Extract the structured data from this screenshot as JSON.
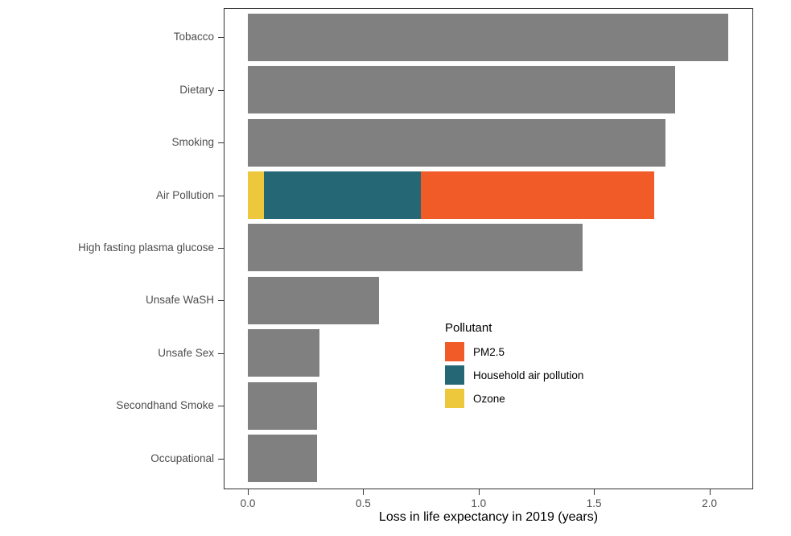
{
  "figure": {
    "background": "#ffffff",
    "panel_border_color": "#333333",
    "axis_text_color": "#4d4d4d",
    "default_bar_color": "#808080"
  },
  "chart_data": {
    "type": "bar",
    "orientation": "horizontal",
    "title": "",
    "xlabel": "Loss in life expectancy in 2019 (years)",
    "ylabel": "",
    "xlim": [
      0,
      2.19
    ],
    "grid": false,
    "x_ticks": [
      {
        "value": 0.0,
        "label": "0.0"
      },
      {
        "value": 0.5,
        "label": "0.5"
      },
      {
        "value": 1.0,
        "label": "1.0"
      },
      {
        "value": 1.5,
        "label": "1.5"
      },
      {
        "value": 2.0,
        "label": "2.0"
      }
    ],
    "categories": [
      "Tobacco",
      "Dietary",
      "Smoking",
      "Air Pollution",
      "High fasting plasma glucose",
      "Unsafe WaSH",
      "Unsafe Sex",
      "Secondhand Smoke",
      "Occupational"
    ],
    "bars": [
      {
        "category": "Tobacco",
        "total": 2.08,
        "segments": [
          {
            "pollutant": "",
            "value": 2.08,
            "color": "#808080"
          }
        ]
      },
      {
        "category": "Dietary",
        "total": 1.85,
        "segments": [
          {
            "pollutant": "",
            "value": 1.85,
            "color": "#808080"
          }
        ]
      },
      {
        "category": "Smoking",
        "total": 1.81,
        "segments": [
          {
            "pollutant": "",
            "value": 1.81,
            "color": "#808080"
          }
        ]
      },
      {
        "category": "Air Pollution",
        "total": 1.76,
        "segments": [
          {
            "pollutant": "Ozone",
            "value": 0.07,
            "color": "#EEC83C"
          },
          {
            "pollutant": "Household air pollution",
            "value": 0.68,
            "color": "#266776"
          },
          {
            "pollutant": "PM2.5",
            "value": 1.01,
            "color": "#F15B28"
          }
        ]
      },
      {
        "category": "High fasting plasma glucose",
        "total": 1.45,
        "segments": [
          {
            "pollutant": "",
            "value": 1.45,
            "color": "#808080"
          }
        ]
      },
      {
        "category": "Unsafe WaSH",
        "total": 0.57,
        "segments": [
          {
            "pollutant": "",
            "value": 0.57,
            "color": "#808080"
          }
        ]
      },
      {
        "category": "Unsafe Sex",
        "total": 0.31,
        "segments": [
          {
            "pollutant": "",
            "value": 0.31,
            "color": "#808080"
          }
        ]
      },
      {
        "category": "Secondhand Smoke",
        "total": 0.3,
        "segments": [
          {
            "pollutant": "",
            "value": 0.3,
            "color": "#808080"
          }
        ]
      },
      {
        "category": "Occupational",
        "total": 0.3,
        "segments": [
          {
            "pollutant": "",
            "value": 0.3,
            "color": "#808080"
          }
        ]
      }
    ],
    "legend": {
      "title": "Pollutant",
      "position": "inside-right-middle",
      "entries": [
        {
          "label": "PM2.5",
          "color": "#F15B28"
        },
        {
          "label": "Household air pollution",
          "color": "#266776"
        },
        {
          "label": "Ozone",
          "color": "#EEC83C"
        }
      ]
    }
  }
}
